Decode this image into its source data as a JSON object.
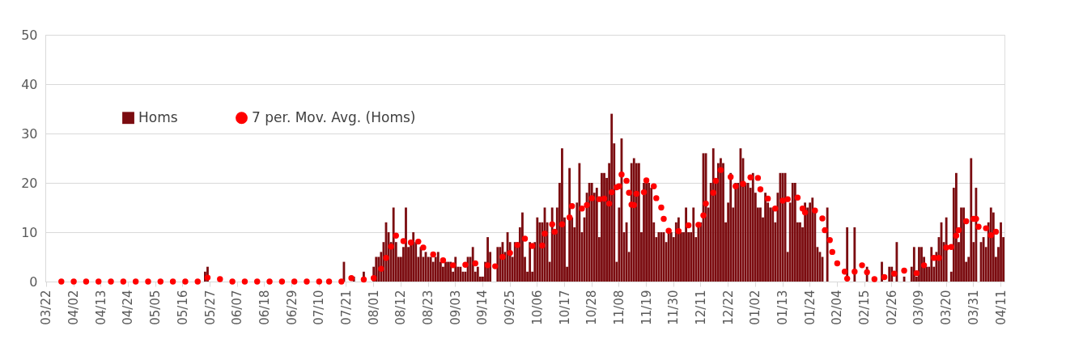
{
  "chart_data": {
    "type": "bar",
    "categories": [
      "03/22",
      null,
      null,
      null,
      null,
      null,
      null,
      null,
      null,
      null,
      null,
      "04/02",
      null,
      null,
      null,
      null,
      null,
      null,
      null,
      null,
      null,
      null,
      "04/13",
      null,
      null,
      null,
      null,
      null,
      null,
      null,
      null,
      null,
      null,
      "04/24",
      null,
      null,
      null,
      null,
      null,
      null,
      null,
      null,
      null,
      null,
      "05/05",
      null,
      null,
      null,
      null,
      null,
      null,
      null,
      null,
      null,
      null,
      "05/16",
      null,
      null,
      null,
      null,
      null,
      null,
      null,
      null,
      null,
      null,
      "05/27",
      null,
      null,
      null,
      null,
      null,
      null,
      null,
      null,
      null,
      null,
      "06/07",
      null,
      null,
      null,
      null,
      null,
      null,
      null,
      null,
      null,
      null,
      "06/18",
      null,
      null,
      null,
      null,
      null,
      null,
      null,
      null,
      null,
      null,
      "06/29",
      null,
      null,
      null,
      null,
      null,
      null,
      null,
      null,
      null,
      null,
      "07/10",
      null,
      null,
      null,
      null,
      null,
      null,
      null,
      null,
      null,
      null,
      "07/21",
      null,
      null,
      null,
      null,
      null,
      null,
      null,
      null,
      null,
      null,
      "08/01",
      null,
      null,
      null,
      null,
      null,
      null,
      null,
      null,
      null,
      null,
      "08/12",
      null,
      null,
      null,
      null,
      null,
      null,
      null,
      null,
      null,
      null,
      "08/23",
      null,
      null,
      null,
      null,
      null,
      null,
      null,
      null,
      null,
      null,
      "09/03",
      null,
      null,
      null,
      null,
      null,
      null,
      null,
      null,
      null,
      null,
      "09/14",
      null,
      null,
      null,
      null,
      null,
      null,
      null,
      null,
      null,
      null,
      "09/25",
      null,
      null,
      null,
      null,
      null,
      null,
      null,
      null,
      null,
      null,
      "10/06",
      null,
      null,
      null,
      null,
      null,
      null,
      null,
      null,
      null,
      null,
      "10/17",
      null,
      null,
      null,
      null,
      null,
      null,
      null,
      null,
      null,
      null,
      "10/28",
      null,
      null,
      null,
      null,
      null,
      null,
      null,
      null,
      null,
      null,
      "11/08",
      null,
      null,
      null,
      null,
      null,
      null,
      null,
      null,
      null,
      null,
      "11/19",
      null,
      null,
      null,
      null,
      null,
      null,
      null,
      null,
      null,
      null,
      "11/30",
      null,
      null,
      null,
      null,
      null,
      null,
      null,
      null,
      null,
      null,
      "12/11",
      null,
      null,
      null,
      null,
      null,
      null,
      null,
      null,
      null,
      null,
      "12/22",
      null,
      null,
      null,
      null,
      null,
      null,
      null,
      null,
      null,
      null,
      "01/02",
      null,
      null,
      null,
      null,
      null,
      null,
      null,
      null,
      null,
      null,
      "01/13",
      null,
      null,
      null,
      null,
      null,
      null,
      null,
      null,
      null,
      null,
      "01/24",
      null,
      null,
      null,
      null,
      null,
      null,
      null,
      null,
      null,
      null,
      "02/04",
      null,
      null,
      null,
      null,
      null,
      null,
      null,
      null,
      null,
      null,
      "02/15",
      null,
      null,
      null,
      null,
      null,
      null,
      null,
      null,
      null,
      null,
      "02/26",
      null,
      null,
      null,
      null,
      null,
      null,
      null,
      null,
      null,
      null,
      "03/09",
      null,
      null,
      null,
      null,
      null,
      null,
      null,
      null,
      null,
      null,
      "03/20",
      null,
      null,
      null,
      null,
      null,
      null,
      null,
      null,
      null,
      null,
      "03/31",
      null,
      null,
      null,
      null,
      null,
      null,
      null,
      null,
      null,
      null,
      "04/11",
      null
    ],
    "series": [
      {
        "name": "Homs",
        "color": "#7b0c10",
        "values": [
          0,
          0,
          0,
          0,
          0,
          0,
          0,
          0,
          0,
          0,
          0,
          0,
          0,
          0,
          0,
          0,
          0,
          0,
          0,
          0,
          0,
          0,
          0,
          0,
          0,
          0,
          0,
          0,
          0,
          0,
          0,
          0,
          0,
          0,
          0,
          0,
          0,
          0,
          0,
          0,
          0,
          0,
          0,
          0,
          0,
          0,
          0,
          0,
          0,
          0,
          0,
          0,
          0,
          0,
          0,
          0,
          0,
          0,
          0,
          0,
          0,
          0,
          0,
          0,
          2,
          3,
          0,
          0,
          0,
          0,
          0,
          0,
          0,
          0,
          0,
          0,
          0,
          0,
          0,
          0,
          0,
          0,
          0,
          0,
          0,
          0,
          0,
          0,
          0,
          0,
          0,
          0,
          0,
          0,
          0,
          0,
          0,
          0,
          0,
          0,
          0,
          0,
          0,
          0,
          0,
          0,
          0,
          0,
          0,
          0,
          0,
          0,
          0,
          0,
          0,
          0,
          0,
          0,
          0,
          0,
          4,
          0,
          0,
          0,
          1,
          0,
          0,
          0,
          2,
          0,
          0,
          0,
          3,
          5,
          5,
          6,
          8,
          12,
          10,
          8,
          15,
          8,
          5,
          5,
          7,
          15,
          7,
          8,
          10,
          8,
          5,
          7,
          5,
          6,
          5,
          5,
          4,
          5,
          6,
          4,
          3,
          4,
          4,
          4,
          2,
          5,
          3,
          3,
          2,
          2,
          5,
          5,
          7,
          2,
          3,
          1,
          1,
          4,
          9,
          6,
          0,
          0,
          7,
          7,
          8,
          6,
          10,
          8,
          5,
          8,
          8,
          11,
          14,
          5,
          2,
          8,
          2,
          8,
          13,
          12,
          12,
          15,
          12,
          4,
          15,
          10,
          15,
          20,
          27,
          13,
          3,
          23,
          13,
          11,
          16,
          24,
          10,
          13,
          18,
          20,
          20,
          18,
          19,
          9,
          22,
          22,
          21,
          24,
          34,
          28,
          4,
          15,
          29,
          10,
          12,
          6,
          24,
          25,
          24,
          24,
          10,
          20,
          20,
          20,
          19,
          12,
          9,
          10,
          10,
          10,
          8,
          10,
          10,
          9,
          12,
          13,
          10,
          10,
          15,
          10,
          10,
          15,
          9,
          12,
          12,
          26,
          26,
          15,
          20,
          27,
          20,
          24,
          25,
          24,
          12,
          16,
          22,
          15,
          20,
          20,
          27,
          25,
          20,
          20,
          19,
          22,
          18,
          15,
          15,
          13,
          18,
          16,
          15,
          15,
          12,
          18,
          22,
          22,
          22,
          6,
          16,
          20,
          20,
          12,
          12,
          11,
          16,
          15,
          16,
          17,
          14,
          7,
          6,
          5,
          0,
          15,
          0,
          0,
          0,
          0,
          0,
          0,
          0,
          11,
          0,
          0,
          11,
          0,
          0,
          0,
          0,
          3,
          0,
          0,
          0,
          0,
          0,
          4,
          0,
          0,
          3,
          3,
          0,
          8,
          0,
          0,
          1,
          0,
          0,
          3,
          7,
          1,
          7,
          7,
          5,
          3,
          3,
          7,
          3,
          6,
          9,
          12,
          8,
          13,
          0,
          2,
          19,
          22,
          8,
          15,
          15,
          4,
          5,
          25,
          8,
          19,
          0,
          8,
          9,
          7,
          12,
          15,
          14,
          5,
          7,
          12,
          9
        ]
      },
      {
        "name": "7 per. Mov. Avg. (Homs)",
        "type": "scatter",
        "color": "#ff0000",
        "values": [
          null,
          null,
          null,
          null,
          null,
          null,
          0,
          null,
          null,
          null,
          null,
          0,
          null,
          null,
          null,
          null,
          0,
          null,
          null,
          null,
          null,
          0,
          null,
          null,
          null,
          null,
          0,
          null,
          null,
          null,
          null,
          0,
          null,
          null,
          null,
          null,
          0,
          null,
          null,
          null,
          null,
          0,
          null,
          null,
          null,
          null,
          0,
          null,
          null,
          null,
          null,
          0,
          null,
          null,
          null,
          null,
          0,
          null,
          null,
          null,
          null,
          0,
          null,
          null,
          null,
          0.8,
          null,
          null,
          null,
          null,
          0.5,
          null,
          null,
          null,
          null,
          0,
          null,
          null,
          null,
          null,
          0,
          null,
          null,
          null,
          null,
          0,
          null,
          null,
          null,
          null,
          0,
          null,
          null,
          null,
          null,
          0,
          null,
          null,
          null,
          null,
          0,
          null,
          null,
          null,
          null,
          0,
          null,
          null,
          null,
          null,
          0,
          null,
          null,
          null,
          0,
          null,
          null,
          null,
          null,
          0,
          null,
          null,
          null,
          0.7,
          null,
          null,
          null,
          null,
          0.4,
          null,
          null,
          null,
          0.7,
          null,
          null,
          2.6,
          null,
          4.8,
          null,
          7.1,
          null,
          9.3,
          null,
          null,
          8.2,
          null,
          null,
          7.9,
          null,
          null,
          8.1,
          null,
          6.9,
          null,
          null,
          null,
          5.5,
          null,
          null,
          null,
          4.3,
          null,
          null,
          null,
          3.3,
          null,
          null,
          null,
          null,
          3.4,
          null,
          null,
          null,
          3.7,
          null,
          null,
          null,
          null,
          3.3,
          null,
          null,
          3.1,
          null,
          null,
          5,
          null,
          null,
          5.8,
          null,
          null,
          7.4,
          null,
          null,
          8.7,
          null,
          null,
          7.2,
          null,
          null,
          null,
          7.3,
          9.7,
          null,
          null,
          11.6,
          10.1,
          null,
          null,
          11.6,
          null,
          null,
          13,
          15.3,
          null,
          null,
          null,
          14.8,
          null,
          15.5,
          null,
          16.9,
          null,
          null,
          16.7,
          null,
          16.8,
          null,
          15.8,
          18.1,
          null,
          19.1,
          19.3,
          21.7,
          null,
          20.4,
          18,
          15.6,
          15.5,
          17.8,
          null,
          null,
          18.1,
          20.5,
          null,
          null,
          19.3,
          16.9,
          null,
          15,
          12.7,
          null,
          10.3,
          null,
          null,
          null,
          10.2,
          null,
          null,
          null,
          11.4,
          null,
          null,
          null,
          11.5,
          null,
          13.4,
          15.8,
          null,
          null,
          18,
          20.4,
          null,
          22.6,
          null,
          null,
          null,
          21.2,
          null,
          19.3,
          null,
          null,
          19.8,
          null,
          null,
          21.1,
          null,
          null,
          21,
          18.7,
          null,
          null,
          16.8,
          null,
          null,
          14.8,
          null,
          null,
          16.4,
          null,
          16.7,
          null,
          null,
          null,
          17,
          null,
          14.8,
          14,
          null,
          null,
          null,
          14.4,
          null,
          null,
          12.8,
          10.4,
          null,
          8.4,
          6,
          null,
          3.7,
          null,
          null,
          2,
          0.6,
          null,
          null,
          2,
          null,
          null,
          3.3,
          null,
          1.9,
          null,
          null,
          0.5,
          null,
          null,
          null,
          0.9,
          null,
          null,
          null,
          1.6,
          null,
          null,
          null,
          2.2,
          null,
          null,
          null,
          null,
          1.7,
          null,
          null,
          3.3,
          null,
          null,
          null,
          4.8,
          null,
          4.8,
          null,
          null,
          6.9,
          null,
          7,
          null,
          9.3,
          10.4,
          null,
          null,
          12.2,
          null,
          null,
          12.7,
          12.7,
          11.1,
          null,
          null,
          10.8,
          null,
          9.4,
          null,
          10.1,
          null,
          null,
          null
        ]
      }
    ],
    "ylim": [
      0,
      50
    ],
    "yticks": [
      0,
      10,
      20,
      30,
      40,
      50
    ],
    "grid": "y",
    "legend": "top left",
    "marker": "circle"
  }
}
